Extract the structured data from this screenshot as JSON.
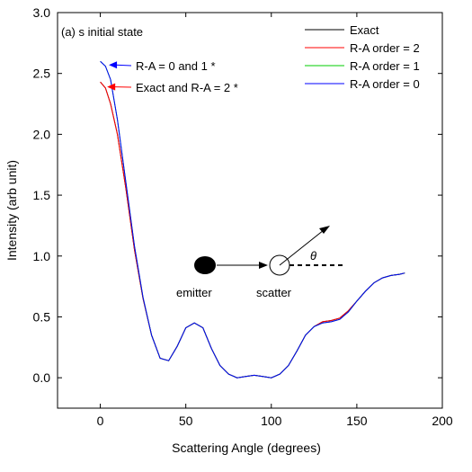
{
  "chart_data": {
    "type": "line",
    "title": "",
    "panel_label": "(a) s initial state",
    "xlabel": "Scattering Angle (degrees)",
    "ylabel": "Intensity (arb unit)",
    "xlim": [
      -25,
      200
    ],
    "ylim": [
      -0.25,
      3.0
    ],
    "xticks": [
      0,
      50,
      100,
      150,
      200
    ],
    "yticks": [
      0.0,
      0.5,
      1.0,
      1.5,
      2.0,
      2.5,
      3.0
    ],
    "xtick_labels": [
      "0",
      "50",
      "100",
      "150",
      "200"
    ],
    "ytick_labels": [
      "0.0",
      "0.5",
      "1.0",
      "1.5",
      "2.0",
      "2.5",
      "3.0"
    ],
    "grid": false,
    "legend_position": "top-right",
    "series": [
      {
        "name": "Exact",
        "color": "#000000",
        "x": [
          0,
          3,
          6,
          10,
          15,
          20,
          25,
          30,
          35,
          40,
          45,
          50,
          55,
          60,
          65,
          70,
          75,
          80,
          85,
          90,
          95,
          100,
          105,
          110,
          115,
          120,
          125,
          130,
          135,
          140,
          145,
          150,
          155,
          160,
          165,
          170,
          175,
          178
        ],
        "y": [
          2.43,
          2.38,
          2.25,
          2.0,
          1.55,
          1.05,
          0.65,
          0.35,
          0.16,
          0.14,
          0.26,
          0.41,
          0.45,
          0.41,
          0.24,
          0.1,
          0.03,
          0.0,
          0.01,
          0.02,
          0.01,
          0.0,
          0.03,
          0.1,
          0.22,
          0.35,
          0.42,
          0.46,
          0.47,
          0.49,
          0.55,
          0.63,
          0.71,
          0.78,
          0.82,
          0.84,
          0.85,
          0.86
        ]
      },
      {
        "name": "R-A order = 2",
        "color": "#ff0000",
        "x": [
          0,
          3,
          6,
          10,
          15,
          20,
          25,
          30,
          35,
          40,
          45,
          50,
          55,
          60,
          65,
          70,
          75,
          80,
          85,
          90,
          95,
          100,
          105,
          110,
          115,
          120,
          125,
          130,
          135,
          140,
          145,
          150,
          155,
          160,
          165,
          170,
          175,
          178
        ],
        "y": [
          2.43,
          2.38,
          2.25,
          2.0,
          1.55,
          1.05,
          0.65,
          0.35,
          0.16,
          0.14,
          0.26,
          0.41,
          0.45,
          0.41,
          0.24,
          0.1,
          0.03,
          0.0,
          0.01,
          0.02,
          0.01,
          0.0,
          0.03,
          0.1,
          0.22,
          0.35,
          0.42,
          0.46,
          0.47,
          0.49,
          0.55,
          0.63,
          0.71,
          0.78,
          0.82,
          0.84,
          0.85,
          0.86
        ]
      },
      {
        "name": "R-A order = 1",
        "color": "#00cc00",
        "x": [
          0,
          3,
          6,
          10,
          15,
          20,
          25,
          30,
          35,
          40,
          45,
          50,
          55,
          60,
          65,
          70,
          75,
          80,
          85,
          90,
          95,
          100,
          105,
          110,
          115,
          120,
          125,
          130,
          135,
          140,
          145,
          150,
          155,
          160,
          165,
          170,
          175,
          178
        ],
        "y": [
          2.6,
          2.56,
          2.45,
          2.12,
          1.6,
          1.08,
          0.66,
          0.35,
          0.16,
          0.14,
          0.26,
          0.41,
          0.45,
          0.41,
          0.24,
          0.1,
          0.03,
          0.0,
          0.01,
          0.02,
          0.01,
          0.0,
          0.03,
          0.1,
          0.22,
          0.35,
          0.42,
          0.45,
          0.46,
          0.48,
          0.54,
          0.63,
          0.71,
          0.78,
          0.82,
          0.84,
          0.85,
          0.86
        ]
      },
      {
        "name": "R-A order = 0",
        "color": "#0000ff",
        "x": [
          0,
          3,
          6,
          10,
          15,
          20,
          25,
          30,
          35,
          40,
          45,
          50,
          55,
          60,
          65,
          70,
          75,
          80,
          85,
          90,
          95,
          100,
          105,
          110,
          115,
          120,
          125,
          130,
          135,
          140,
          145,
          150,
          155,
          160,
          165,
          170,
          175,
          178
        ],
        "y": [
          2.6,
          2.56,
          2.45,
          2.12,
          1.6,
          1.08,
          0.66,
          0.35,
          0.16,
          0.14,
          0.26,
          0.41,
          0.45,
          0.41,
          0.24,
          0.1,
          0.03,
          0.0,
          0.01,
          0.02,
          0.01,
          0.0,
          0.03,
          0.1,
          0.22,
          0.35,
          0.42,
          0.45,
          0.46,
          0.48,
          0.54,
          0.63,
          0.71,
          0.78,
          0.82,
          0.84,
          0.85,
          0.86
        ]
      }
    ],
    "annotations": [
      {
        "text": "R-A = 0 and 1 *",
        "arrow_color": "#0000ff",
        "target": [
          5,
          2.57
        ]
      },
      {
        "text": "Exact and R-A = 2 *",
        "arrow_color": "#ff0000",
        "target": [
          4,
          2.39
        ]
      }
    ],
    "inset": {
      "emitter_label": "emitter",
      "scatter_label": "scatter",
      "angle_label": "θ"
    }
  }
}
